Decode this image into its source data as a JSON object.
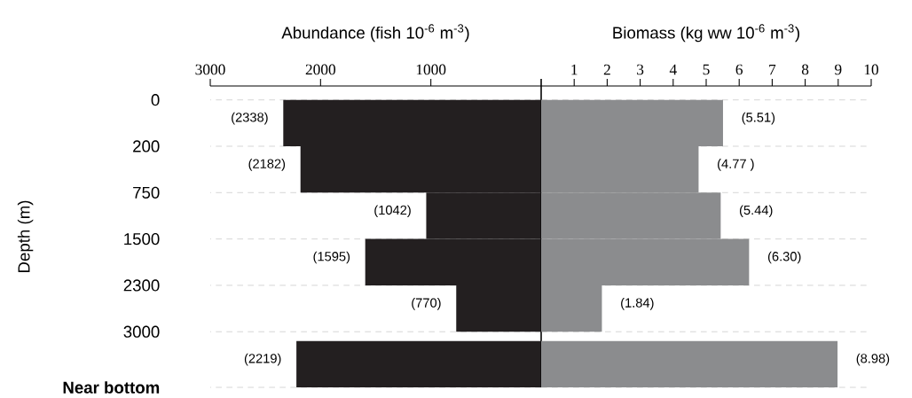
{
  "chart_data": [
    {
      "type": "bar",
      "orientation": "horizontal",
      "xlabel": "Abundance (fish 10$^{-6}$ m$^{-3}$)",
      "ylabel": "Depth (m)",
      "categories": [
        null,
        null,
        null,
        null,
        null,
        null
      ],
      "values": [
        2338,
        2182,
        1042,
        1595,
        770,
        2219
      ],
      "color": "#231f20",
      "value_labels": [
        "(2338)",
        "(2182)",
        "(1042)",
        "(1595)",
        "(770)",
        "(2219)"
      ],
      "xlim": [
        3000,
        0
      ],
      "xticks": [
        3000,
        2000,
        1000,
        {
          "value": 0,
          "label": null
        }
      ],
      "annotations": [
        "0",
        "200",
        "750",
        "1500",
        "2300",
        "3000",
        "Near bottom"
      ],
      "grid": "y"
    },
    {
      "type": "bar",
      "orientation": "horizontal",
      "xlabel": "Biomass (kg ww 10$^{-6}$ m$^{-3}$)",
      "categories": [
        null,
        null,
        null,
        null,
        null,
        null
      ],
      "values": [
        5.51,
        4.77,
        5.44,
        6.3,
        1.84,
        8.98
      ],
      "color": "#8b8c8e",
      "value_labels": [
        "(5.51)",
        "(4.77 )",
        "(5.44)",
        "(6.30)",
        "(1.84)",
        "(8.98)"
      ],
      "xlim": [
        0,
        10
      ],
      "xticks": [
        {
          "value": 0,
          "label": null
        },
        1,
        2,
        3,
        4,
        5,
        6,
        7,
        8,
        9,
        10
      ],
      "grid": "y"
    }
  ]
}
